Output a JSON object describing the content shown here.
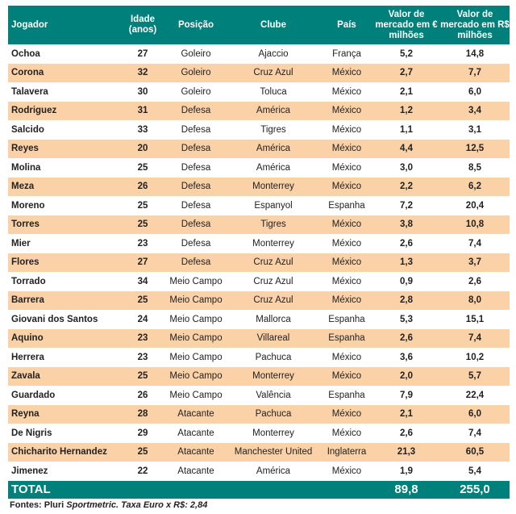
{
  "headers": {
    "player": "Jogador",
    "age": "Idade (anos)",
    "position": "Posição",
    "club": "Clube",
    "country": "País",
    "eur": "Valor de mercado em € milhões",
    "brl": "Valor de mercado em R$ milhões"
  },
  "rows": [
    [
      "Ochoa",
      "27",
      "Goleiro",
      "Ajaccio",
      "França",
      "5,2",
      "14,8"
    ],
    [
      "Corona",
      "32",
      "Goleiro",
      "Cruz Azul",
      "México",
      "2,7",
      "7,7"
    ],
    [
      "Talavera",
      "30",
      "Goleiro",
      "Toluca",
      "México",
      "2,1",
      "6,0"
    ],
    [
      "Rodriguez",
      "31",
      "Defesa",
      "América",
      "México",
      "1,2",
      "3,4"
    ],
    [
      "Salcido",
      "33",
      "Defesa",
      "Tigres",
      "México",
      "1,1",
      "3,1"
    ],
    [
      "Reyes",
      "20",
      "Defesa",
      "América",
      "México",
      "4,4",
      "12,5"
    ],
    [
      "Molina",
      "25",
      "Defesa",
      "América",
      "México",
      "3,0",
      "8,5"
    ],
    [
      "Meza",
      "26",
      "Defesa",
      "Monterrey",
      "México",
      "2,2",
      "6,2"
    ],
    [
      "Moreno",
      "25",
      "Defesa",
      "Espanyol",
      "Espanha",
      "7,2",
      "20,4"
    ],
    [
      "Torres",
      "25",
      "Defesa",
      "Tigres",
      "México",
      "3,8",
      "10,8"
    ],
    [
      "Mier",
      "23",
      "Defesa",
      "Monterrey",
      "México",
      "2,6",
      "7,4"
    ],
    [
      "Flores",
      "27",
      "Defesa",
      "Cruz Azul",
      "México",
      "1,3",
      "3,7"
    ],
    [
      "Torrado",
      "34",
      "Meio Campo",
      "Cruz Azul",
      "México",
      "0,9",
      "2,6"
    ],
    [
      "Barrera",
      "25",
      "Meio Campo",
      "Cruz Azul",
      "México",
      "2,8",
      "8,0"
    ],
    [
      "Giovani dos Santos",
      "24",
      "Meio Campo",
      "Mallorca",
      "Espanha",
      "5,3",
      "15,1"
    ],
    [
      "Aquino",
      "23",
      "Meio Campo",
      "Villareal",
      "Espanha",
      "2,6",
      "7,4"
    ],
    [
      "Herrera",
      "23",
      "Meio Campo",
      "Pachuca",
      "México",
      "3,6",
      "10,2"
    ],
    [
      "Zavala",
      "25",
      "Meio Campo",
      "Monterrey",
      "México",
      "2,0",
      "5,7"
    ],
    [
      "Guardado",
      "26",
      "Meio Campo",
      "Valência",
      "Espanha",
      "7,9",
      "22,4"
    ],
    [
      "Reyna",
      "28",
      "Atacante",
      "Pachuca",
      "México",
      "2,1",
      "6,0"
    ],
    [
      "De Nigris",
      "29",
      "Atacante",
      "Monterrey",
      "México",
      "2,6",
      "7,4"
    ],
    [
      "Chicharito Hernandez",
      "25",
      "Atacante",
      "Manchester United",
      "Inglaterra",
      "21,3",
      "60,5"
    ],
    [
      "Jimenez",
      "22",
      "Atacante",
      "América",
      "México",
      "1,9",
      "5,4"
    ]
  ],
  "total": {
    "label": "TOTAL",
    "eur": "89,8",
    "brl": "255,0"
  },
  "footer": {
    "prefix": "Fontes: Pluri ",
    "source": "Sportmetric. Taxa Euro x R$: 2,84"
  },
  "colors": {
    "header": "#00807a",
    "alt_row": "#fbd1a8"
  }
}
